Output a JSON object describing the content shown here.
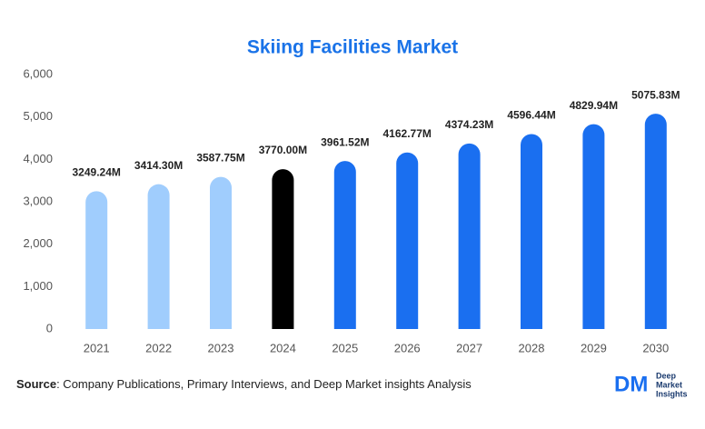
{
  "chart_data": {
    "type": "bar",
    "title": "Skiing Facilities Market",
    "categories": [
      "2021",
      "2022",
      "2023",
      "2024",
      "2025",
      "2026",
      "2027",
      "2028",
      "2029",
      "2030"
    ],
    "values": [
      3249.24,
      3414.3,
      3587.75,
      3770.0,
      3961.52,
      4162.77,
      4374.23,
      4596.44,
      4829.94,
      5075.83
    ],
    "value_labels": [
      "3249.24M",
      "3414.30M",
      "3587.75M",
      "3770.00M",
      "3961.52M",
      "4162.77M",
      "4374.23M",
      "4596.44M",
      "4829.94M",
      "5075.83M"
    ],
    "colors": [
      "#a0cdfd",
      "#a0cdfd",
      "#a0cdfd",
      "#000000",
      "#1a6ff0",
      "#1a6ff0",
      "#1a6ff0",
      "#1a6ff0",
      "#1a6ff0",
      "#1a6ff0"
    ],
    "ylim": [
      0,
      6000
    ],
    "yticks": [
      0,
      {
        "value": 1000,
        "label": "1,000"
      },
      {
        "value": 2000,
        "label": "2,000"
      },
      {
        "value": 3000,
        "label": "3,000"
      },
      {
        "value": 4000,
        "label": "4,000"
      },
      {
        "value": 5000,
        "label": "5,000"
      },
      {
        "value": 6000,
        "label": "6,000"
      }
    ],
    "grid": false
  },
  "footer": {
    "source_label": "Source",
    "source_text": ": Company Publications, Primary Interviews, and Deep Market insights Analysis",
    "logo_mark": "DM",
    "logo_lines": [
      "Deep",
      "Market",
      "Insights"
    ]
  }
}
